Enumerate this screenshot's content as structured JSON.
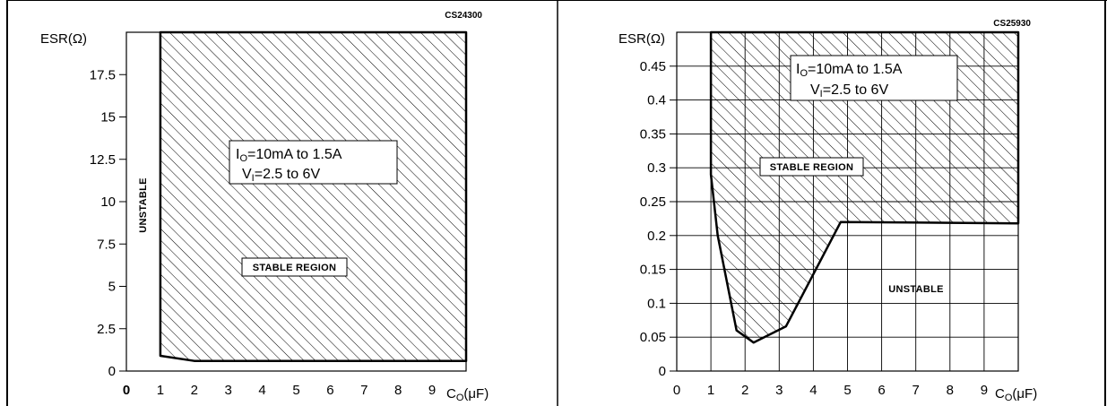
{
  "chart_data": [
    {
      "type": "area",
      "figure_code": "CS24300",
      "ylabel": "ESR(Ω)",
      "xlabel": "C",
      "xlabel_sub": "O",
      "xlabel_unit": "(μF)",
      "xlim": [
        0,
        10
      ],
      "ylim": [
        0,
        20
      ],
      "x_ticks": [
        0,
        1,
        2,
        3,
        4,
        5,
        6,
        7,
        8,
        9
      ],
      "y_ticks": [
        0,
        2.5,
        5,
        7.5,
        10,
        12.5,
        15,
        17.5
      ],
      "y_tick_labels": [
        "0",
        "2.5",
        "5",
        "7.5",
        "10",
        "12.5",
        "15",
        "17.5"
      ],
      "grid": false,
      "condition_line1": "I",
      "condition_line1_sub": "O",
      "condition_line1_rest": "=10mA  to  1.5A",
      "condition_line2": "V",
      "condition_line2_sub": "I",
      "condition_line2_rest": "=2.5  to  6V",
      "stable_label": "STABLE REGION",
      "unstable_label": "UNSTABLE",
      "stable_boundary": {
        "x": [
          1,
          1,
          2,
          10,
          10
        ],
        "y": [
          20,
          0.9,
          0.6,
          0.6,
          20
        ]
      }
    },
    {
      "type": "area",
      "figure_code": "CS25930",
      "ylabel": "ESR(Ω)",
      "xlabel": "C",
      "xlabel_sub": "O",
      "xlabel_unit": "(μF)",
      "xlim": [
        0,
        10
      ],
      "ylim": [
        0,
        0.5
      ],
      "x_ticks": [
        0,
        1,
        2,
        3,
        4,
        5,
        6,
        7,
        8,
        9
      ],
      "y_ticks": [
        0,
        0.05,
        0.1,
        0.15,
        0.2,
        0.25,
        0.3,
        0.35,
        0.4,
        0.45
      ],
      "y_tick_labels": [
        "0",
        "0.05",
        "0.1",
        "0.15",
        "0.2",
        "0.25",
        "0.3",
        "0.35",
        "0.4",
        "0.45"
      ],
      "grid": true,
      "condition_line1": "I",
      "condition_line1_sub": "O",
      "condition_line1_rest": "=10mA  to  1.5A",
      "condition_line2": "V",
      "condition_line2_sub": "I",
      "condition_line2_rest": "=2.5  to  6V",
      "stable_label": "STABLE REGION",
      "unstable_label": "UNSTABLE",
      "stable_boundary": {
        "x": [
          1,
          1,
          1.2,
          1.75,
          2.25,
          3.2,
          4.8,
          10,
          10
        ],
        "y": [
          0.5,
          0.29,
          0.2,
          0.06,
          0.042,
          0.066,
          0.22,
          0.218,
          0.5
        ]
      }
    }
  ]
}
